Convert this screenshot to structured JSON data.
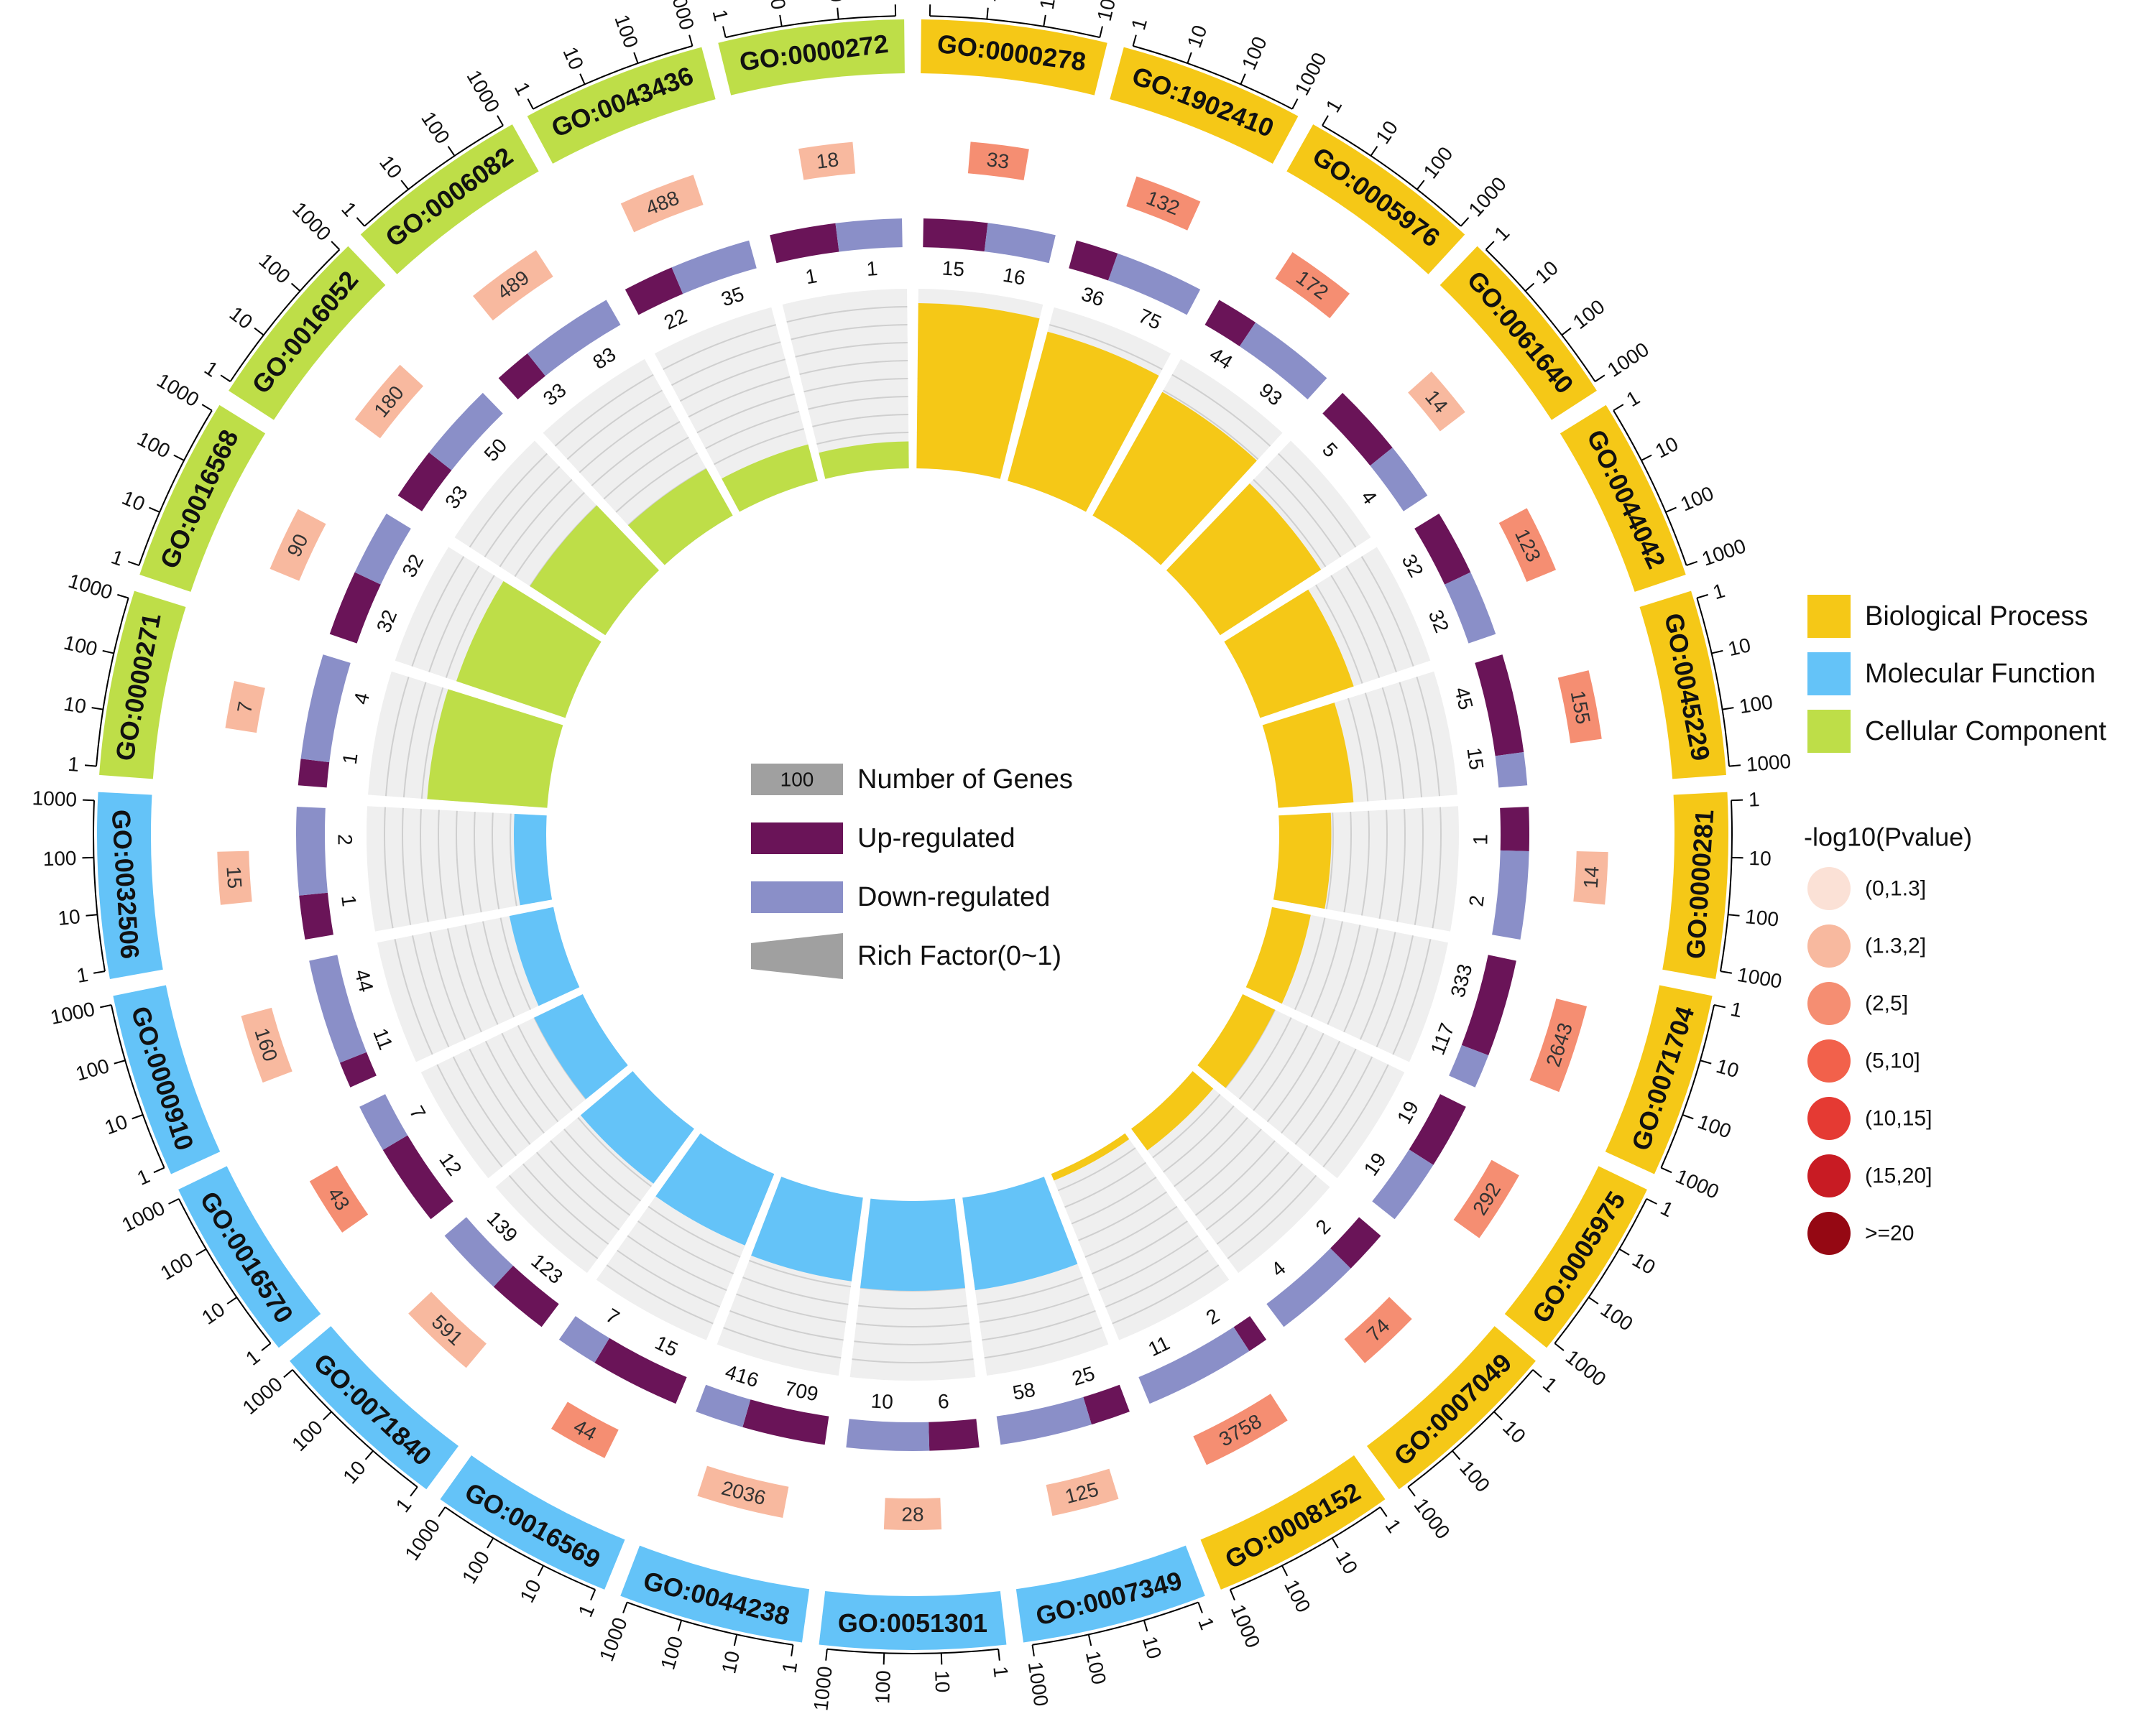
{
  "chart_data": {
    "type": "circular-go-enrichment",
    "colors": {
      "Biological Process": "#f5c817",
      "Molecular Function": "#64c3f8",
      "Cellular Component": "#bede48",
      "up": "#6a1458",
      "down": "#8a8fc8",
      "track": "#efefef",
      "gene_box": "#a0a0a0"
    },
    "scale_ticks": [
      "1",
      "10",
      "100",
      "1000"
    ],
    "terms": [
      {
        "id": "GO:0000278",
        "category": "Biological Process",
        "genes": "33",
        "up": 15,
        "down": 16,
        "rich": 0.92,
        "pclass": 2
      },
      {
        "id": "GO:1902410",
        "category": "Biological Process",
        "genes": "132",
        "up": 36,
        "down": 75,
        "rich": 0.86,
        "pclass": 2
      },
      {
        "id": "GO:0005976",
        "category": "Biological Process",
        "genes": "172",
        "up": 44,
        "down": 93,
        "rich": 0.79,
        "pclass": 2
      },
      {
        "id": "GO:0061640",
        "category": "Biological Process",
        "genes": "14",
        "up": 5,
        "down": 4,
        "rich": 0.67,
        "pclass": 1
      },
      {
        "id": "GO:0044042",
        "category": "Biological Process",
        "genes": "123",
        "up": 32,
        "down": 32,
        "rich": 0.55,
        "pclass": 2
      },
      {
        "id": "GO:0045229",
        "category": "Biological Process",
        "genes": "155",
        "up": 45,
        "down": 15,
        "rich": 0.42,
        "pclass": 2
      },
      {
        "id": "GO:0000281",
        "category": "Biological Process",
        "genes": "14",
        "up": 1,
        "down": 2,
        "rich": 0.29,
        "pclass": 1
      },
      {
        "id": "GO:0071704",
        "category": "Biological Process",
        "genes": "2643",
        "up": 333,
        "down": 117,
        "rich": 0.22,
        "pclass": 2
      },
      {
        "id": "GO:0005975",
        "category": "Biological Process",
        "genes": "292",
        "up": 19,
        "down": 19,
        "rich": 0.2,
        "pclass": 2
      },
      {
        "id": "GO:0007049",
        "category": "Biological Process",
        "genes": "74",
        "up": 2,
        "down": 4,
        "rich": 0.15,
        "pclass": 2
      },
      {
        "id": "GO:0008152",
        "category": "Biological Process",
        "genes": "3758",
        "up": 2,
        "down": 11,
        "rich": 0.04,
        "pclass": 2
      },
      {
        "id": "GO:0007349",
        "category": "Molecular Function",
        "genes": "125",
        "up": 25,
        "down": 58,
        "rich": 0.52,
        "pclass": 1
      },
      {
        "id": "GO:0051301",
        "category": "Molecular Function",
        "genes": "28",
        "up": 6,
        "down": 10,
        "rich": 0.5,
        "pclass": 1
      },
      {
        "id": "GO:0044238",
        "category": "Molecular Function",
        "genes": "2036",
        "up": 709,
        "down": 416,
        "rich": 0.47,
        "pclass": 1
      },
      {
        "id": "GO:0016569",
        "category": "Molecular Function",
        "genes": "44",
        "up": 15,
        "down": 7,
        "rich": 0.43,
        "pclass": 2
      },
      {
        "id": "GO:0071840",
        "category": "Molecular Function",
        "genes": "591",
        "up": 123,
        "down": 139,
        "rich": 0.38,
        "pclass": 1
      },
      {
        "id": "GO:0016570",
        "category": "Molecular Function",
        "genes": "43",
        "up": 12,
        "down": 7,
        "rich": 0.3,
        "pclass": 2
      },
      {
        "id": "GO:0000910",
        "category": "Molecular Function",
        "genes": "160",
        "up": 11,
        "down": 44,
        "rich": 0.25,
        "pclass": 1
      },
      {
        "id": "GO:0032506",
        "category": "Molecular Function",
        "genes": "15",
        "up": 1,
        "down": 2,
        "rich": 0.18,
        "pclass": 1
      },
      {
        "id": "GO:0000271",
        "category": "Cellular Component",
        "genes": "7",
        "up": 1,
        "down": 4,
        "rich": 0.67,
        "pclass": 1
      },
      {
        "id": "GO:0016568",
        "category": "Cellular Component",
        "genes": "90",
        "up": 32,
        "down": 32,
        "rich": 0.64,
        "pclass": 1
      },
      {
        "id": "GO:0016052",
        "category": "Cellular Component",
        "genes": "180",
        "up": 33,
        "down": 50,
        "rich": 0.5,
        "pclass": 1
      },
      {
        "id": "GO:0006082",
        "category": "Cellular Component",
        "genes": "489",
        "up": 33,
        "down": 83,
        "rich": 0.3,
        "pclass": 1
      },
      {
        "id": "GO:0043436",
        "category": "Cellular Component",
        "genes": "488",
        "up": 22,
        "down": 35,
        "rich": 0.21,
        "pclass": 1
      },
      {
        "id": "GO:0000272",
        "category": "Cellular Component",
        "genes": "18",
        "up": 1,
        "down": 1,
        "rich": 0.15,
        "pclass": 1
      }
    ],
    "inner_legend": [
      {
        "key": "genes",
        "box_text": "100",
        "label": "Number of Genes",
        "color": "#a0a0a0"
      },
      {
        "key": "up",
        "box_text": "",
        "label": "Up-regulated",
        "color": "#6a1458"
      },
      {
        "key": "down",
        "box_text": "",
        "label": "Down-regulated",
        "color": "#8a8fc8"
      },
      {
        "key": "rich",
        "box_text": "",
        "label": "Rich Factor(0~1)",
        "color": "#a0a0a0"
      }
    ],
    "category_legend": [
      {
        "label": "Biological Process",
        "color": "#f5c817"
      },
      {
        "label": "Molecular Function",
        "color": "#64c3f8"
      },
      {
        "label": "Cellular Component",
        "color": "#bede48"
      }
    ],
    "pvalue_legend": {
      "title": "-log10(Pvalue)",
      "items": [
        {
          "label": "(0,1.3]",
          "color": "#fbe1d6"
        },
        {
          "label": "(1.3,2]",
          "color": "#f8b99f"
        },
        {
          "label": "(2,5]",
          "color": "#f58e72"
        },
        {
          "label": "(5,10]",
          "color": "#f2614b"
        },
        {
          "label": "(10,15]",
          "color": "#e53a33"
        },
        {
          "label": "(15,20]",
          "color": "#c81b23"
        },
        {
          "label": ">=20",
          "color": "#950813"
        }
      ]
    }
  }
}
